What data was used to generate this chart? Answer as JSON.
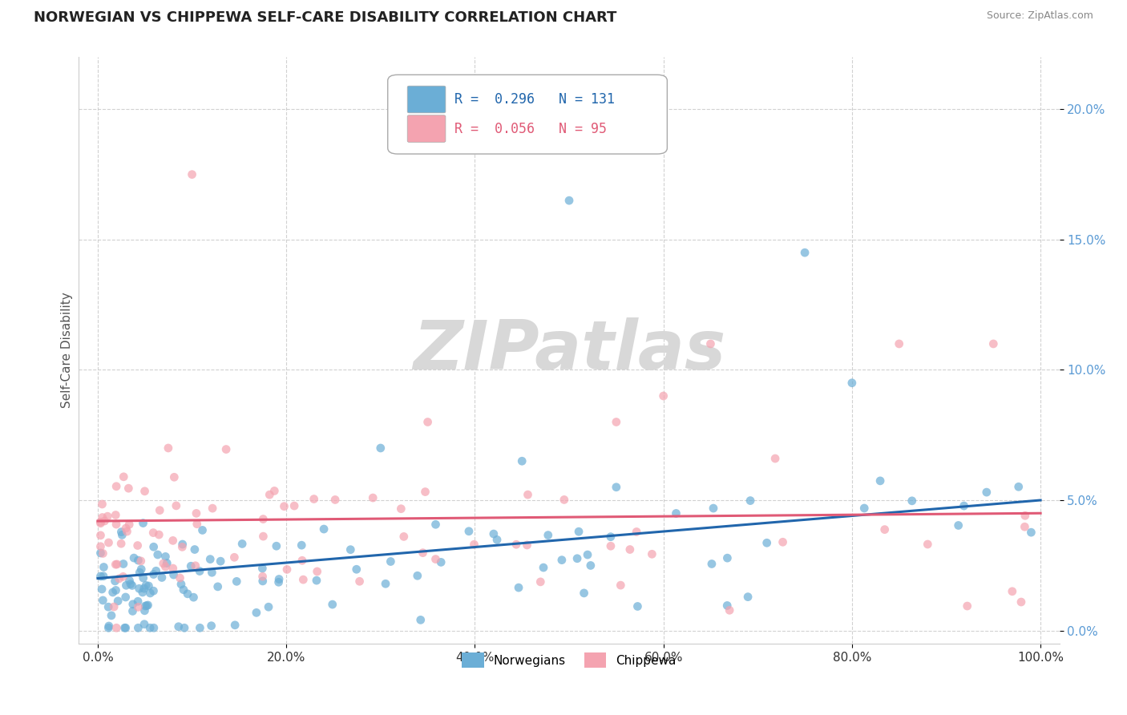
{
  "title": "NORWEGIAN VS CHIPPEWA SELF-CARE DISABILITY CORRELATION CHART",
  "source_text": "Source: ZipAtlas.com",
  "ylabel": "Self-Care Disability",
  "xlabel": "",
  "xlim": [
    -2,
    102
  ],
  "ylim": [
    -0.5,
    22
  ],
  "ytick_vals": [
    0,
    5,
    10,
    15,
    20
  ],
  "ytick_labels": [
    "0.0%",
    "5.0%",
    "10.0%",
    "15.0%",
    "20.0%"
  ],
  "xtick_vals": [
    0,
    20,
    40,
    60,
    80,
    100
  ],
  "xtick_labels": [
    "0.0%",
    "20.0%",
    "40.0%",
    "60.0%",
    "80.0%",
    "100.0%"
  ],
  "norwegian_color": "#6baed6",
  "chippewa_color": "#f4a3b0",
  "norwegian_line_color": "#2166ac",
  "chippewa_line_color": "#e05a76",
  "legend_R1": "0.296",
  "legend_N1": "131",
  "legend_R2": "0.056",
  "legend_N2": "95",
  "legend_label1": "Norwegians",
  "legend_label2": "Chippewa",
  "watermark": "ZIPatlas",
  "background_color": "#ffffff",
  "grid_color": "#cccccc",
  "title_fontsize": 13,
  "axis_fontsize": 11,
  "tick_fontsize": 11,
  "ytick_color": "#5b9bd5",
  "norw_line_start": 2.0,
  "norw_line_end": 5.0,
  "chip_line_start": 4.2,
  "chip_line_end": 4.5
}
